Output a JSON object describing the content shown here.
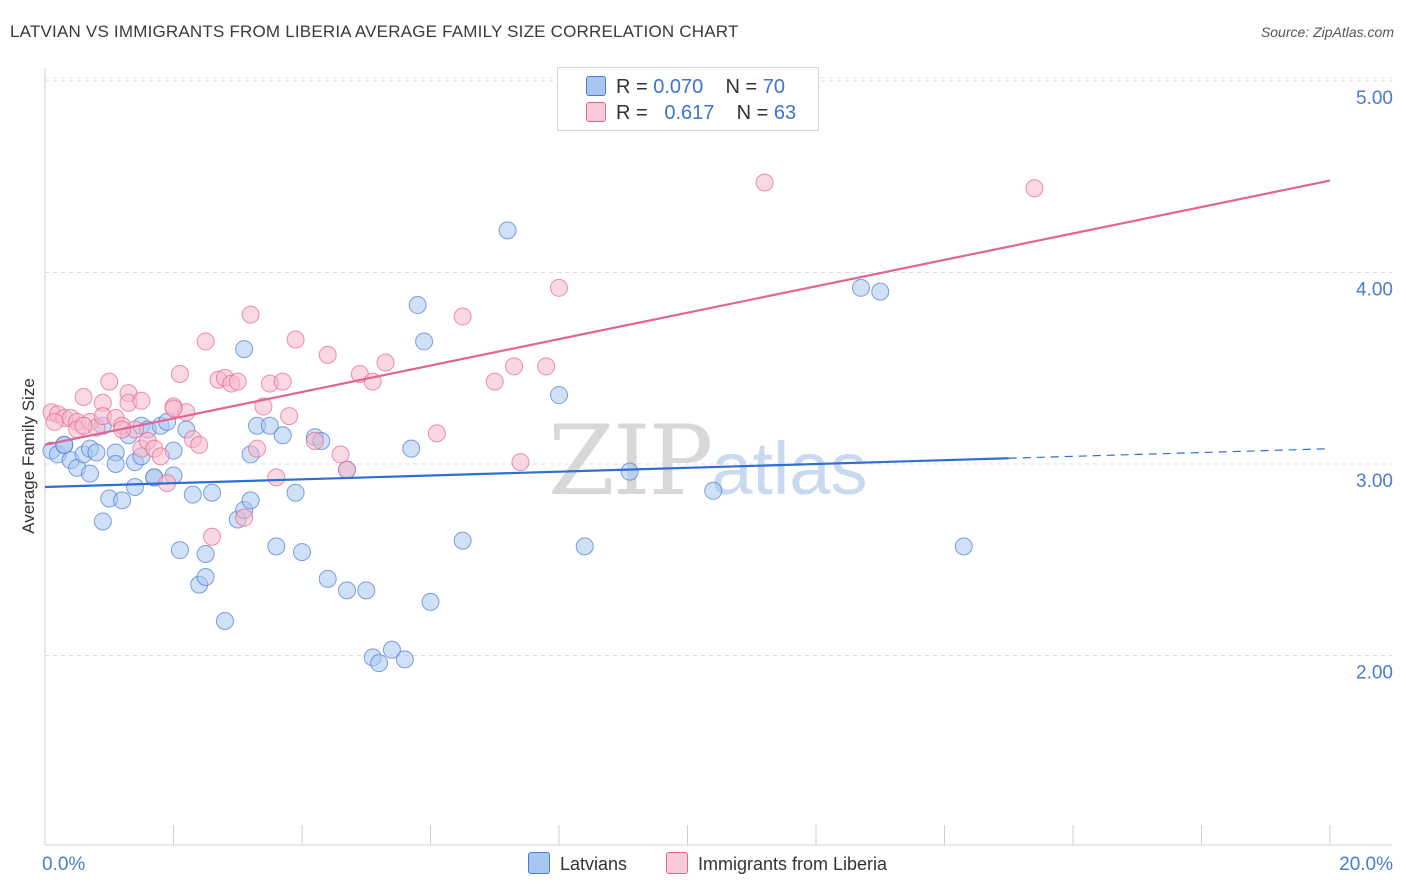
{
  "title": "LATVIAN VS IMMIGRANTS FROM LIBERIA AVERAGE FAMILY SIZE CORRELATION CHART",
  "source": "Source: ZipAtlas.com",
  "watermark": {
    "zip": "ZIP",
    "atlas": "atlas"
  },
  "legend_top": {
    "rows": [
      {
        "r_label": "R = ",
        "r_value": "0.070",
        "n_label": "N = ",
        "n_value": "70",
        "color": "#a9c6f0"
      },
      {
        "r_label": "R = ",
        "r_value": "0.617",
        "n_label": "N = ",
        "n_value": "63",
        "color": "#f5b8cb"
      }
    ]
  },
  "bottom_legend": {
    "items": [
      {
        "label": "Latvians",
        "color": "#a9c6f0"
      },
      {
        "label": "Immigrants from Liberia",
        "color": "#f5b8cb"
      }
    ]
  },
  "chart_data": {
    "type": "scatter",
    "title": "LATVIAN VS IMMIGRANTS FROM LIBERIA AVERAGE FAMILY SIZE CORRELATION CHART",
    "xlabel": "",
    "ylabel": "Average Family Size",
    "xlim": [
      0,
      20
    ],
    "ylim": [
      1.0,
      5.1
    ],
    "x_tick_labels": [
      "0.0%",
      "20.0%"
    ],
    "y_ticks": [
      2.0,
      3.0,
      4.0,
      5.0
    ],
    "y_tick_labels": [
      "2.00",
      "3.00",
      "4.00",
      "5.00"
    ],
    "grid": true,
    "series": [
      {
        "name": "Latvians",
        "color": "#4a7bd1",
        "fill": "#a9c6f0",
        "trend": {
          "x": [
            0,
            15
          ],
          "y": [
            2.88,
            3.03
          ],
          "dashed_extension_to": [
            20,
            3.08
          ]
        },
        "points": [
          [
            0.1,
            3.07
          ],
          [
            0.2,
            3.05
          ],
          [
            0.3,
            3.1
          ],
          [
            0.4,
            3.02
          ],
          [
            0.5,
            2.98
          ],
          [
            0.6,
            3.05
          ],
          [
            0.7,
            3.08
          ],
          [
            0.7,
            2.95
          ],
          [
            0.8,
            3.06
          ],
          [
            0.9,
            3.2
          ],
          [
            0.9,
            2.7
          ],
          [
            1.0,
            2.82
          ],
          [
            1.1,
            3.06
          ],
          [
            1.1,
            3.0
          ],
          [
            1.2,
            2.81
          ],
          [
            1.3,
            3.15
          ],
          [
            1.4,
            3.01
          ],
          [
            1.4,
            2.88
          ],
          [
            1.5,
            3.2
          ],
          [
            1.5,
            3.04
          ],
          [
            1.6,
            3.18
          ],
          [
            1.7,
            2.93
          ],
          [
            1.7,
            2.93
          ],
          [
            1.8,
            3.2
          ],
          [
            1.9,
            3.22
          ],
          [
            2.0,
            3.07
          ],
          [
            2.0,
            2.94
          ],
          [
            2.1,
            2.55
          ],
          [
            2.2,
            3.18
          ],
          [
            2.3,
            2.84
          ],
          [
            2.4,
            2.37
          ],
          [
            2.5,
            2.41
          ],
          [
            2.5,
            2.53
          ],
          [
            2.6,
            2.85
          ],
          [
            2.8,
            2.18
          ],
          [
            3.0,
            2.71
          ],
          [
            3.1,
            2.76
          ],
          [
            3.1,
            3.6
          ],
          [
            3.2,
            3.05
          ],
          [
            3.2,
            2.81
          ],
          [
            3.3,
            3.2
          ],
          [
            3.5,
            3.2
          ],
          [
            3.6,
            2.57
          ],
          [
            3.7,
            3.15
          ],
          [
            3.9,
            2.85
          ],
          [
            4.0,
            2.54
          ],
          [
            4.2,
            3.14
          ],
          [
            4.3,
            3.12
          ],
          [
            4.4,
            2.4
          ],
          [
            4.7,
            2.97
          ],
          [
            4.7,
            2.34
          ],
          [
            5.0,
            2.34
          ],
          [
            5.1,
            1.99
          ],
          [
            5.2,
            1.96
          ],
          [
            5.4,
            2.03
          ],
          [
            5.6,
            1.98
          ],
          [
            5.7,
            3.08
          ],
          [
            5.8,
            3.83
          ],
          [
            5.9,
            3.64
          ],
          [
            6.0,
            2.28
          ],
          [
            6.5,
            2.6
          ],
          [
            7.2,
            4.22
          ],
          [
            8.0,
            3.36
          ],
          [
            8.4,
            2.57
          ],
          [
            9.1,
            2.96
          ],
          [
            10.4,
            2.86
          ],
          [
            12.7,
            3.92
          ],
          [
            13.0,
            3.9
          ],
          [
            14.3,
            2.57
          ],
          [
            0.3,
            3.1
          ]
        ]
      },
      {
        "name": "Immigrants from Liberia",
        "color": "#e26591",
        "fill": "#f5b8cb",
        "trend": {
          "x": [
            0,
            20
          ],
          "y": [
            3.1,
            4.48
          ]
        },
        "points": [
          [
            0.1,
            3.27
          ],
          [
            0.2,
            3.26
          ],
          [
            0.3,
            3.24
          ],
          [
            0.4,
            3.24
          ],
          [
            0.5,
            3.22
          ],
          [
            0.5,
            3.18
          ],
          [
            0.6,
            3.35
          ],
          [
            0.7,
            3.22
          ],
          [
            0.8,
            3.19
          ],
          [
            0.9,
            3.32
          ],
          [
            0.9,
            3.25
          ],
          [
            1.0,
            3.43
          ],
          [
            1.1,
            3.24
          ],
          [
            1.2,
            3.2
          ],
          [
            1.3,
            3.37
          ],
          [
            1.3,
            3.32
          ],
          [
            1.4,
            3.18
          ],
          [
            1.5,
            3.33
          ],
          [
            1.5,
            3.08
          ],
          [
            1.6,
            3.12
          ],
          [
            1.7,
            3.08
          ],
          [
            1.8,
            3.04
          ],
          [
            1.9,
            2.9
          ],
          [
            2.0,
            3.3
          ],
          [
            2.1,
            3.47
          ],
          [
            2.2,
            3.27
          ],
          [
            2.3,
            3.13
          ],
          [
            2.4,
            3.1
          ],
          [
            2.5,
            3.64
          ],
          [
            2.6,
            2.62
          ],
          [
            2.7,
            3.44
          ],
          [
            2.8,
            3.45
          ],
          [
            2.9,
            3.42
          ],
          [
            3.0,
            3.43
          ],
          [
            3.1,
            2.72
          ],
          [
            3.2,
            3.78
          ],
          [
            3.3,
            3.08
          ],
          [
            3.4,
            3.3
          ],
          [
            3.5,
            3.42
          ],
          [
            3.6,
            2.93
          ],
          [
            3.7,
            3.43
          ],
          [
            3.8,
            3.25
          ],
          [
            3.9,
            3.65
          ],
          [
            4.2,
            3.12
          ],
          [
            4.4,
            3.57
          ],
          [
            4.6,
            3.05
          ],
          [
            4.7,
            2.97
          ],
          [
            4.9,
            3.47
          ],
          [
            5.1,
            3.43
          ],
          [
            5.3,
            3.53
          ],
          [
            6.1,
            3.16
          ],
          [
            6.5,
            3.77
          ],
          [
            7.0,
            3.43
          ],
          [
            7.3,
            3.51
          ],
          [
            7.4,
            3.01
          ],
          [
            7.8,
            3.51
          ],
          [
            8.0,
            3.92
          ],
          [
            11.2,
            4.47
          ],
          [
            15.4,
            4.44
          ],
          [
            0.6,
            3.2
          ],
          [
            1.2,
            3.18
          ],
          [
            2.0,
            3.29
          ],
          [
            0.15,
            3.22
          ]
        ]
      }
    ]
  }
}
